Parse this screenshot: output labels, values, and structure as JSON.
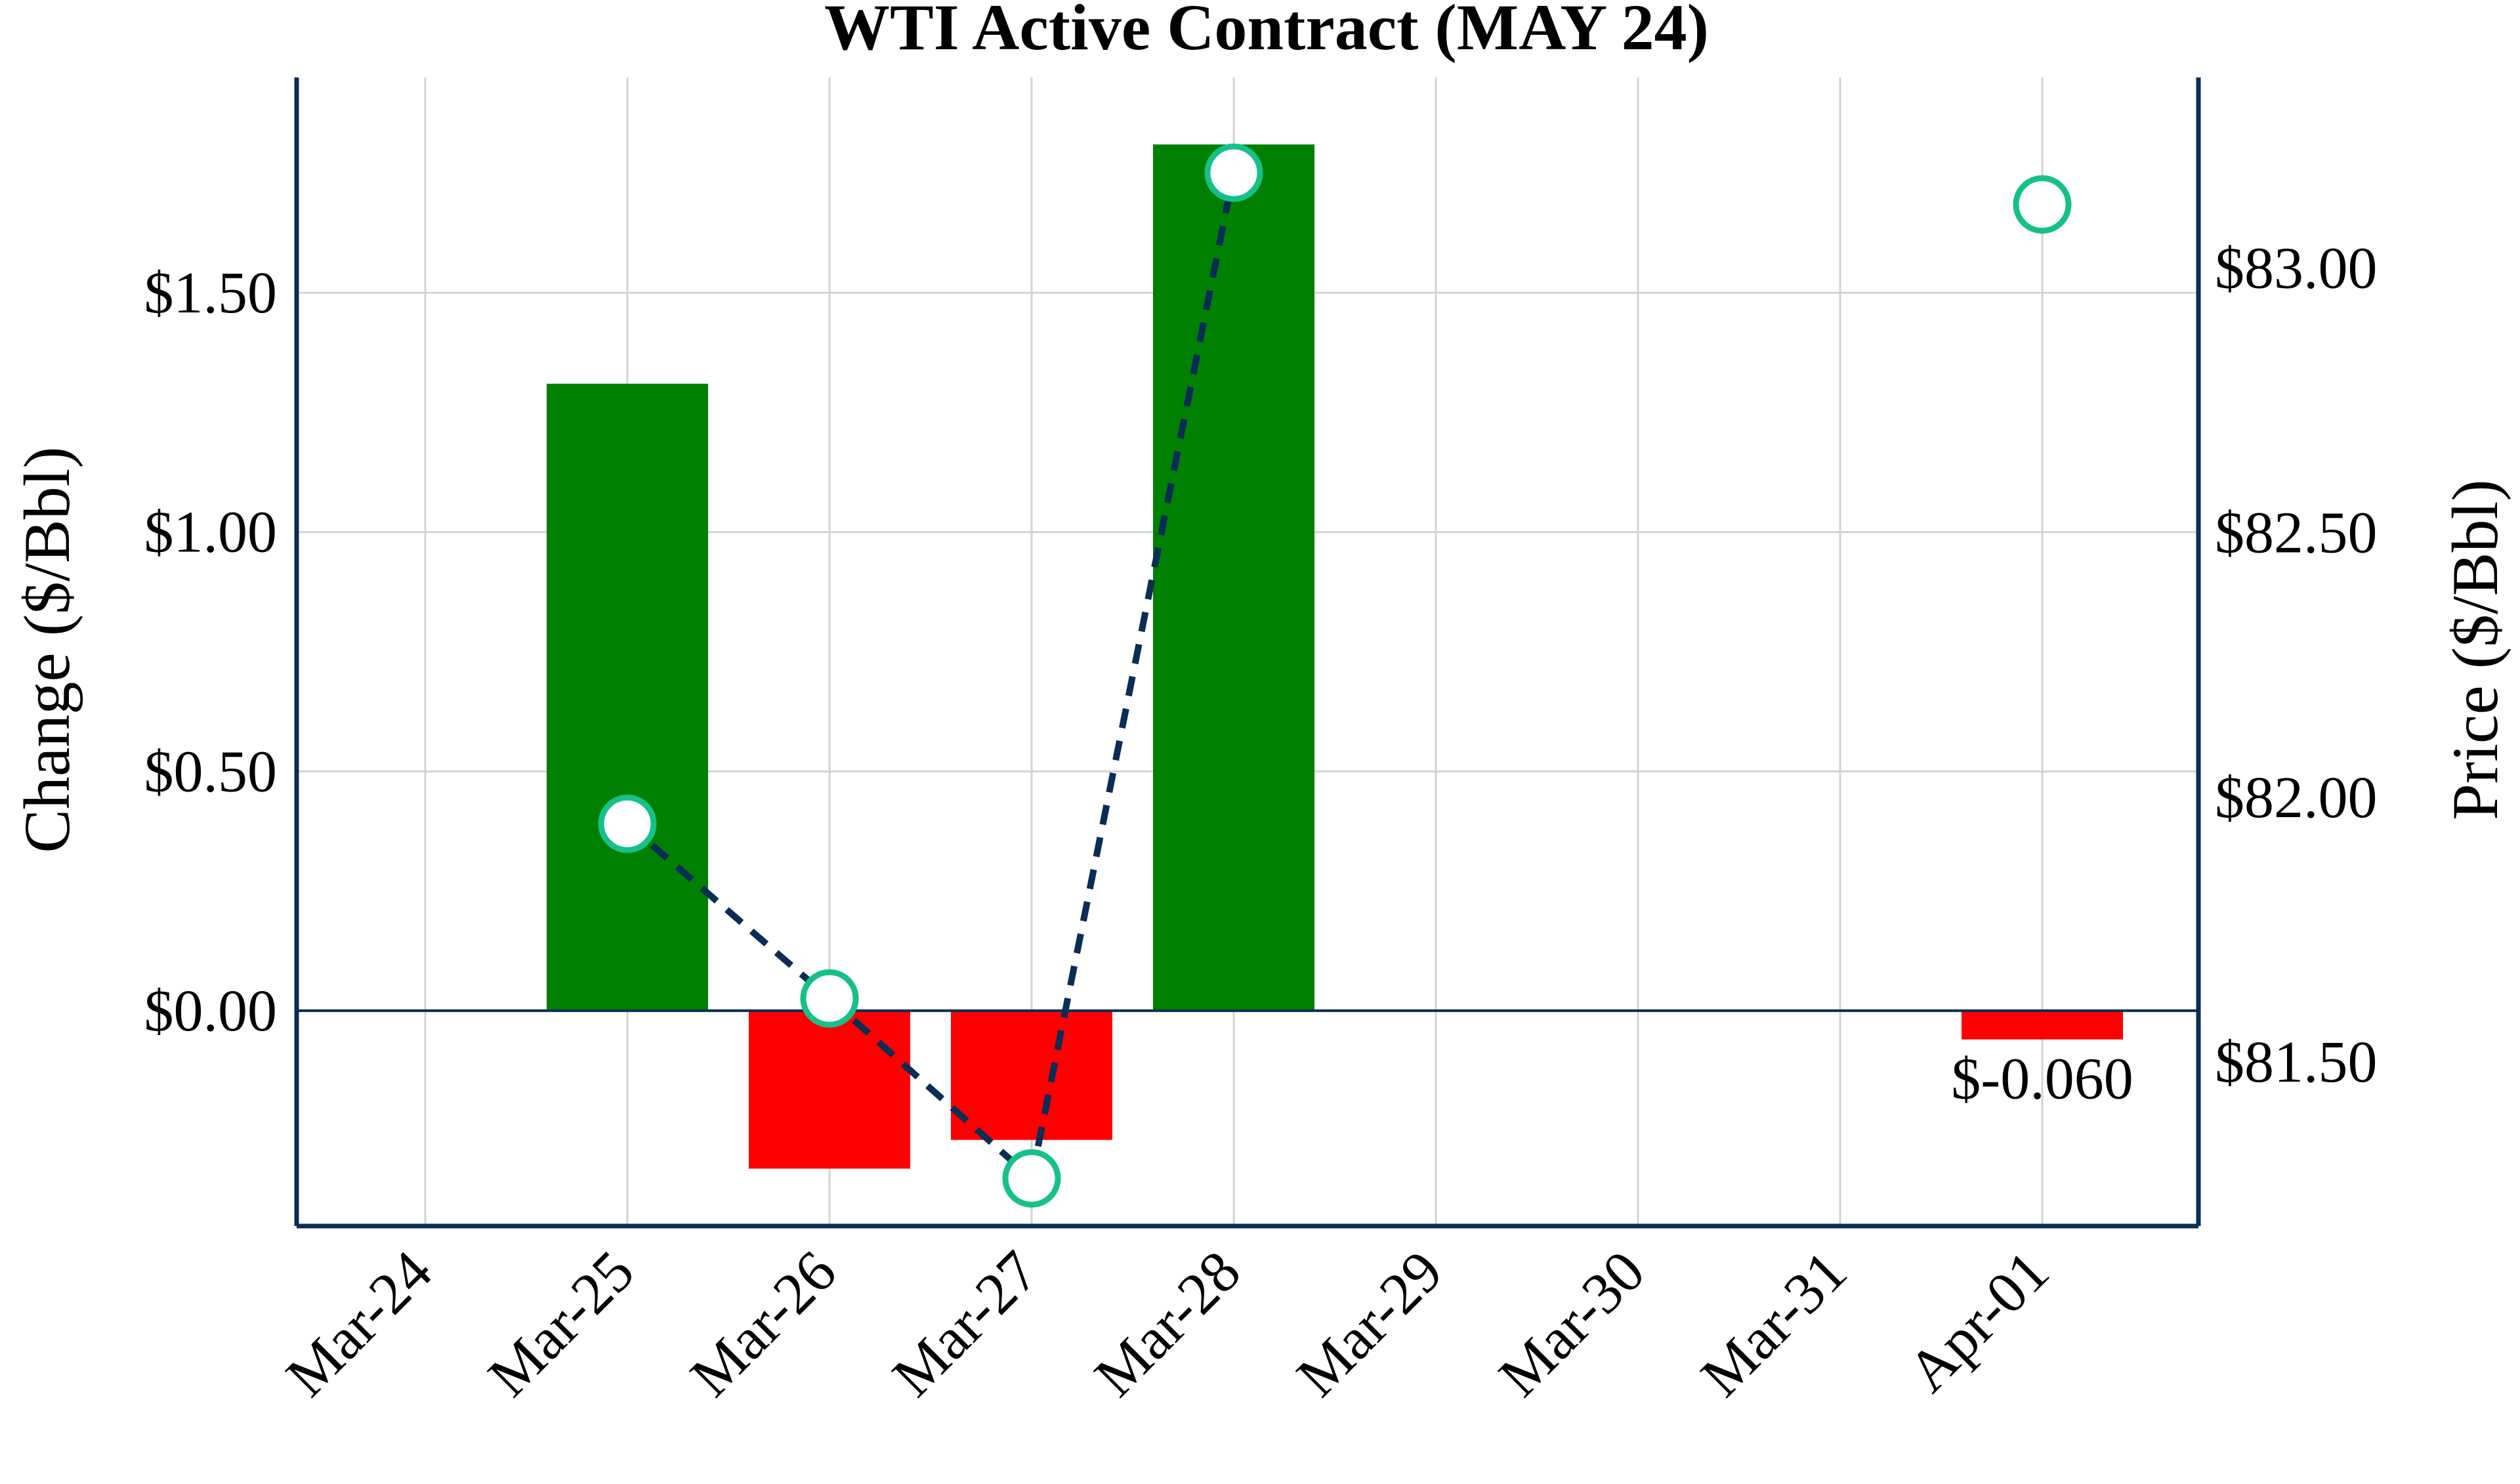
{
  "chart_data": {
    "type": "bar",
    "title": "WTI Active Contract (MAY 24)",
    "categories": [
      "Mar-24",
      "Mar-25",
      "Mar-26",
      "Mar-27",
      "Mar-28",
      "Mar-29",
      "Mar-30",
      "Mar-31",
      "Apr-01"
    ],
    "grid": true,
    "left_axis": {
      "label": "Change ($/Bbl)",
      "ylim": [
        -0.45,
        1.95
      ],
      "ticks": [
        0.0,
        0.5,
        1.0,
        1.5
      ],
      "tick_labels": [
        "$0.00",
        "$0.50",
        "$1.00",
        "$1.50"
      ]
    },
    "right_axis": {
      "label": "Price ($/Bbl)",
      "ylim": [
        81.19,
        83.36
      ],
      "ticks": [
        81.5,
        82.0,
        82.5,
        83.0
      ],
      "tick_labels": [
        "$81.50",
        "$82.00",
        "$82.50",
        "$83.00"
      ]
    },
    "series": [
      {
        "kind": "bar",
        "axis": "left",
        "values": [
          null,
          1.31,
          -0.33,
          -0.27,
          1.81,
          null,
          null,
          null,
          -0.06
        ],
        "positive_color": "#008000",
        "negative_color": "#ff0000"
      },
      {
        "kind": "line",
        "axis": "right",
        "values": [
          null,
          81.95,
          81.62,
          81.28,
          83.18,
          null,
          null,
          null,
          83.12
        ],
        "line_color": "#0b2d55",
        "marker_edge_color": "#16c08a",
        "marker_face_color": "#ffffff"
      }
    ],
    "annotations": [
      {
        "category": "Apr-01",
        "text": "$-0.060"
      }
    ],
    "colors": {
      "axis": "#0b2d55",
      "grid": "#d3d3d3"
    }
  }
}
